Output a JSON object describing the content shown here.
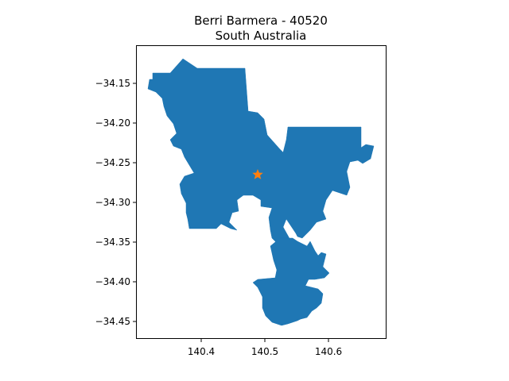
{
  "title_line1": "Berri Barmera - 40520",
  "title_line2": "South Australia",
  "colors": {
    "region_fill": "#1f77b4",
    "marker_fill": "#ff7f0e",
    "axis": "#000000"
  },
  "chart_data": {
    "type": "map",
    "title": "Berri Barmera - 40520\nSouth Australia",
    "xlim": [
      140.31,
      140.68
    ],
    "ylim": [
      -34.47,
      -34.12
    ],
    "x_ticks": [
      "140.4",
      "140.5",
      "140.6"
    ],
    "y_ticks": [
      "−34.15",
      "−34.20",
      "−34.25",
      "−34.30",
      "−34.35",
      "−34.40",
      "−34.45"
    ],
    "marker": {
      "shape": "star",
      "lon": 140.49,
      "lat": -34.265
    },
    "grid": false
  }
}
